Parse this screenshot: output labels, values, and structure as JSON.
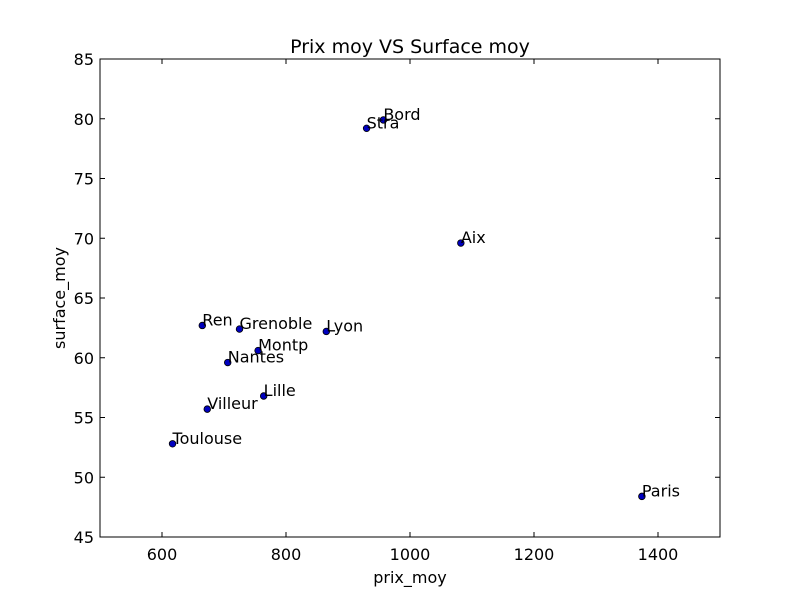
{
  "chart_data": {
    "type": "scatter",
    "title": "Prix moy VS Surface moy",
    "xlabel": "prix_moy",
    "ylabel": "surface_moy",
    "xlim": [
      500,
      1500
    ],
    "ylim": [
      45,
      85
    ],
    "xticks": [
      600,
      800,
      1000,
      1200,
      1400
    ],
    "yticks": [
      45,
      50,
      55,
      60,
      65,
      70,
      75,
      80,
      85
    ],
    "grid": false,
    "marker_color": "#0000bf",
    "points": [
      {
        "label": "Bord",
        "x": 957,
        "y": 79.9
      },
      {
        "label": "Stra",
        "x": 930,
        "y": 79.2
      },
      {
        "label": "Aix",
        "x": 1082,
        "y": 69.6
      },
      {
        "label": "Ren",
        "x": 665,
        "y": 62.7
      },
      {
        "label": "Grenoble",
        "x": 725,
        "y": 62.4
      },
      {
        "label": "Lyon",
        "x": 865,
        "y": 62.2
      },
      {
        "label": "Montp",
        "x": 755,
        "y": 60.6
      },
      {
        "label": "Nantes",
        "x": 706,
        "y": 59.6
      },
      {
        "label": "Lille",
        "x": 764,
        "y": 56.8
      },
      {
        "label": "Villeur",
        "x": 673,
        "y": 55.7
      },
      {
        "label": "Toulouse",
        "x": 617,
        "y": 52.8
      },
      {
        "label": "Paris",
        "x": 1374,
        "y": 48.4
      }
    ]
  }
}
